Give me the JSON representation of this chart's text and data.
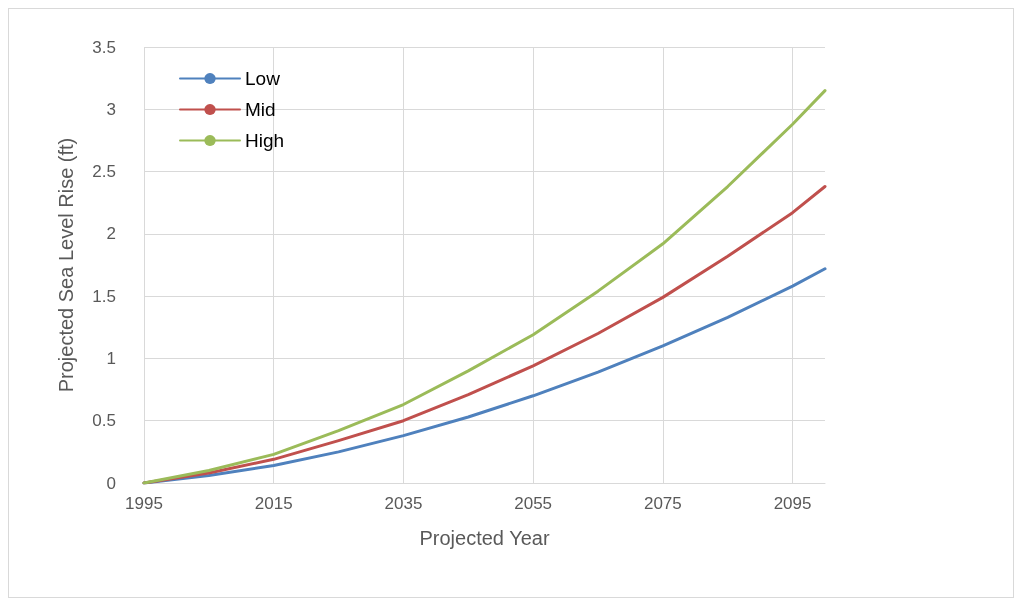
{
  "chart_data": {
    "type": "line",
    "xlabel": "Projected Year",
    "ylabel": "Projected Sea Level Rise (ft)",
    "x": [
      1995,
      2005,
      2015,
      2025,
      2035,
      2045,
      2055,
      2065,
      2075,
      2085,
      2095,
      2100
    ],
    "series": [
      {
        "name": "Low",
        "color": "#4f81bd",
        "values": [
          0,
          0.06,
          0.14,
          0.25,
          0.38,
          0.53,
          0.7,
          0.89,
          1.1,
          1.33,
          1.58,
          1.72
        ]
      },
      {
        "name": "Mid",
        "color": "#c0504d",
        "values": [
          0,
          0.08,
          0.19,
          0.34,
          0.5,
          0.71,
          0.94,
          1.2,
          1.49,
          1.82,
          2.17,
          2.38
        ]
      },
      {
        "name": "High",
        "color": "#9bbb59",
        "values": [
          0,
          0.1,
          0.23,
          0.42,
          0.63,
          0.9,
          1.19,
          1.54,
          1.92,
          2.38,
          2.88,
          3.15
        ]
      }
    ],
    "xlim": [
      1995,
      2100
    ],
    "xticks": [
      1995,
      2015,
      2035,
      2055,
      2075,
      2095
    ],
    "ylim": [
      0,
      3.5
    ],
    "yticks": [
      0,
      0.5,
      1,
      1.5,
      2,
      2.5,
      3,
      3.5
    ],
    "grid": true,
    "legend": "top left",
    "marker": "none",
    "line_style": "solid"
  }
}
